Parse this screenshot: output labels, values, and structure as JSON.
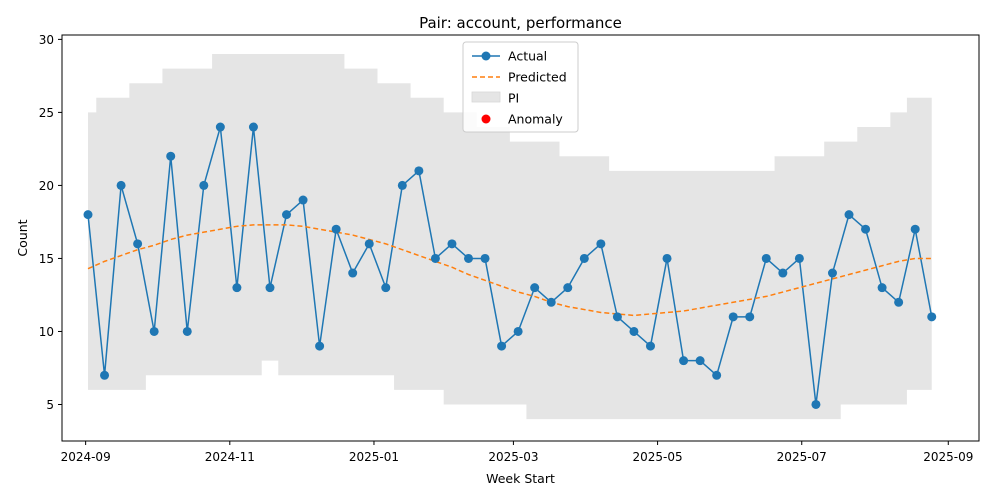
{
  "chart_data": {
    "type": "line",
    "title": "Pair: account, performance",
    "xlabel": "Week Start",
    "ylabel": "Count",
    "ylim": [
      2.5,
      30.3
    ],
    "xlim": [
      "2024-08-22",
      "2025-09-14"
    ],
    "x_ticks": [
      "2024-09",
      "2024-11",
      "2025-01",
      "2025-03",
      "2025-05",
      "2025-07",
      "2025-09"
    ],
    "x_tick_dates": [
      "2024-09-01",
      "2024-11-01",
      "2025-01-01",
      "2025-03-01",
      "2025-05-01",
      "2025-07-01",
      "2025-09-01"
    ],
    "y_ticks": [
      5,
      10,
      15,
      20,
      25,
      30
    ],
    "grid": false,
    "legend_position": "top-center",
    "legend": [
      "Actual",
      "Predicted",
      "PI",
      "Anomaly"
    ],
    "colors": {
      "actual": "#1f77b4",
      "predicted": "#ff7f0e",
      "pi": "#e5e5e5",
      "anomaly": "#ff0000"
    },
    "x": [
      "2024-09-02",
      "2024-09-09",
      "2024-09-16",
      "2024-09-23",
      "2024-09-30",
      "2024-10-07",
      "2024-10-14",
      "2024-10-21",
      "2024-10-28",
      "2024-11-04",
      "2024-11-11",
      "2024-11-18",
      "2024-11-25",
      "2024-12-02",
      "2024-12-09",
      "2024-12-16",
      "2024-12-23",
      "2024-12-30",
      "2025-01-06",
      "2025-01-13",
      "2025-01-20",
      "2025-01-27",
      "2025-02-03",
      "2025-02-10",
      "2025-02-17",
      "2025-02-24",
      "2025-03-03",
      "2025-03-10",
      "2025-03-17",
      "2025-03-24",
      "2025-03-31",
      "2025-04-07",
      "2025-04-14",
      "2025-04-21",
      "2025-04-28",
      "2025-05-05",
      "2025-05-12",
      "2025-05-19",
      "2025-05-26",
      "2025-06-02",
      "2025-06-09",
      "2025-06-16",
      "2025-06-23",
      "2025-06-30",
      "2025-07-07",
      "2025-07-14",
      "2025-07-21",
      "2025-07-28",
      "2025-08-04",
      "2025-08-11",
      "2025-08-18",
      "2025-08-25"
    ],
    "series": [
      {
        "name": "Actual",
        "values": [
          18,
          7,
          20,
          16,
          10,
          22,
          10,
          20,
          24,
          13,
          24,
          13,
          18,
          19,
          9,
          17,
          14,
          16,
          13,
          20,
          21,
          15,
          16,
          15,
          15,
          9,
          10,
          13,
          12,
          13,
          15,
          16,
          11,
          10,
          9,
          15,
          8,
          8,
          7,
          11,
          11,
          15,
          14,
          15,
          5,
          14,
          18,
          17,
          13,
          12,
          17,
          11
        ]
      },
      {
        "name": "Predicted",
        "values": [
          14.3,
          14.8,
          15.2,
          15.6,
          15.9,
          16.3,
          16.6,
          16.8,
          17.0,
          17.2,
          17.3,
          17.3,
          17.3,
          17.2,
          17.0,
          16.8,
          16.6,
          16.3,
          16.0,
          15.6,
          15.2,
          14.8,
          14.4,
          13.9,
          13.5,
          13.1,
          12.7,
          12.4,
          12.0,
          11.7,
          11.5,
          11.3,
          11.2,
          11.1,
          11.2,
          11.3,
          11.4,
          11.6,
          11.8,
          12.0,
          12.2,
          12.4,
          12.7,
          13.0,
          13.3,
          13.6,
          13.9,
          14.2,
          14.5,
          14.8,
          15.0,
          15.0
        ]
      },
      {
        "name": "PI",
        "lower": [
          6,
          6,
          6,
          6,
          7,
          7,
          7,
          7,
          7,
          7,
          7,
          8,
          7,
          7,
          7,
          7,
          7,
          7,
          7,
          6,
          6,
          6,
          5,
          5,
          5,
          5,
          5,
          4,
          4,
          4,
          4,
          4,
          4,
          4,
          4,
          4,
          4,
          4,
          4,
          4,
          4,
          4,
          4,
          4,
          4,
          4,
          5,
          5,
          5,
          5,
          6,
          6
        ],
        "upper": [
          25,
          26,
          26,
          27,
          27,
          28,
          28,
          28,
          29,
          29,
          29,
          29,
          29,
          29,
          29,
          29,
          28,
          28,
          27,
          27,
          26,
          26,
          25,
          25,
          24,
          24,
          23,
          23,
          23,
          22,
          22,
          22,
          21,
          21,
          21,
          21,
          21,
          21,
          21,
          21,
          21,
          21,
          22,
          22,
          22,
          23,
          23,
          24,
          24,
          25,
          26,
          26
        ]
      },
      {
        "name": "Anomaly",
        "x": [],
        "values": []
      }
    ]
  }
}
